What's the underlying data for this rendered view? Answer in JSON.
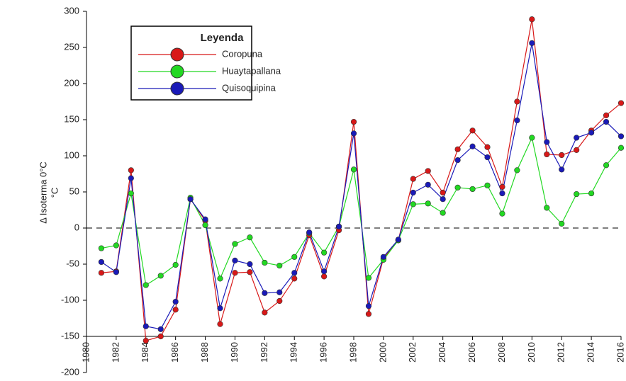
{
  "chart_data": {
    "type": "line",
    "y_label": [
      "Δ Isoterma 0°C",
      "°C"
    ],
    "legend_title": "Leyenda",
    "x": [
      1981,
      1982,
      1983,
      1984,
      1985,
      1986,
      1987,
      1988,
      1989,
      1990,
      1991,
      1992,
      1993,
      1994,
      1995,
      1996,
      1997,
      1998,
      1999,
      2000,
      2001,
      2002,
      2003,
      2004,
      2005,
      2006,
      2007,
      2008,
      2009,
      2010,
      2011,
      2012,
      2013,
      2014,
      2015,
      2016
    ],
    "series": [
      {
        "name": "Coropuna",
        "color": "#d81818",
        "values": [
          -62,
          -60,
          80,
          -156,
          -150,
          -113,
          40,
          10,
          -133,
          -62,
          -61,
          -117,
          -101,
          -70,
          -10,
          -67,
          -3,
          147,
          -119,
          -42,
          -17,
          68,
          79,
          49,
          109,
          135,
          112,
          57,
          175,
          289,
          102,
          101,
          108,
          135,
          156,
          173
        ]
      },
      {
        "name": "Huaytapallana",
        "color": "#22d822",
        "values": [
          -28,
          -24,
          48,
          -79,
          -66,
          -51,
          42,
          4,
          -70,
          -22,
          -13,
          -48,
          -52,
          -40,
          -7,
          -34,
          2,
          81,
          -69,
          -44,
          -17,
          33,
          34,
          21,
          56,
          54,
          59,
          20,
          80,
          125,
          28,
          6,
          47,
          48,
          87,
          111
        ]
      },
      {
        "name": "Quisoquipina",
        "color": "#1a1ab8",
        "values": [
          -47,
          -61,
          69,
          -136,
          -140,
          -102,
          40,
          12,
          -111,
          -45,
          -50,
          -90,
          -89,
          -62,
          -6,
          -60,
          2,
          131,
          -108,
          -40,
          -16,
          49,
          60,
          40,
          94,
          113,
          98,
          48,
          149,
          256,
          119,
          81,
          125,
          132,
          147,
          127
        ]
      }
    ],
    "xlim": [
      1980,
      2016
    ],
    "xticks": [
      1980,
      1982,
      1984,
      1986,
      1988,
      1990,
      1992,
      1994,
      1996,
      1998,
      2000,
      2002,
      2004,
      2006,
      2008,
      2010,
      2012,
      2014,
      2016
    ],
    "ylim": [
      -200,
      300
    ],
    "yticks": [
      -200,
      -150,
      -100,
      -50,
      0,
      50,
      100,
      150,
      200,
      250,
      300
    ],
    "x_axis_at": -150,
    "reference_line": 0,
    "legend": "upper left"
  }
}
